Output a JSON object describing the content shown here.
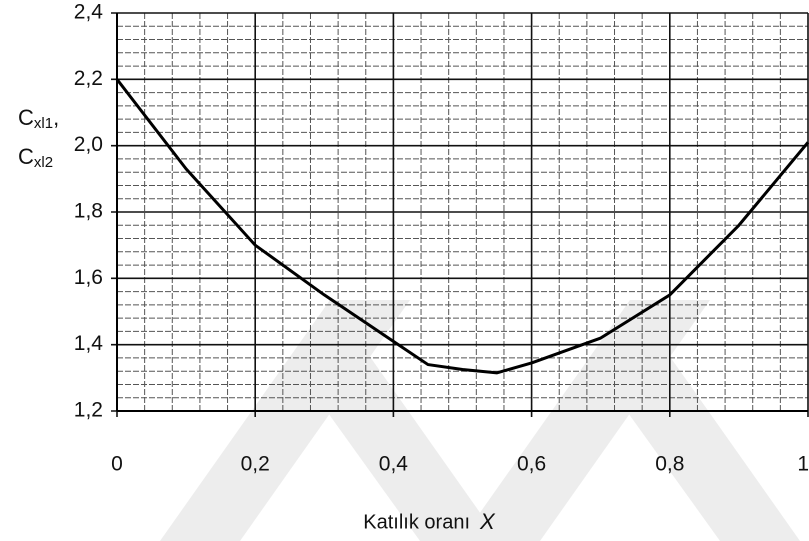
{
  "chart_data": {
    "type": "line",
    "x": [
      0,
      0.1,
      0.2,
      0.3,
      0.4,
      0.45,
      0.5,
      0.55,
      0.6,
      0.7,
      0.8,
      0.9,
      1.0
    ],
    "series": [
      {
        "color": "#000000",
        "values": [
          2.2,
          1.93,
          1.7,
          1.55,
          1.41,
          1.34,
          1.325,
          1.315,
          1.345,
          1.42,
          1.55,
          1.76,
          2.01
        ]
      }
    ],
    "xlim": [
      0,
      1
    ],
    "ylim": [
      1.2,
      2.4
    ],
    "xticks": [
      0,
      {
        "value": 0.2,
        "label": "0,2"
      },
      {
        "value": 0.4,
        "label": "0,4"
      },
      {
        "value": 0.6,
        "label": "0,6"
      },
      {
        "value": 0.8,
        "label": "0,8"
      },
      1
    ],
    "yticks": [
      {
        "value": 1.2,
        "label": "1,2"
      },
      {
        "value": 1.4,
        "label": "1,4"
      },
      {
        "value": 1.6,
        "label": "1,6"
      },
      {
        "value": 1.8,
        "label": "1,8"
      },
      {
        "value": 2.0,
        "label": "2,0"
      },
      {
        "value": 2.2,
        "label": "2,2"
      },
      {
        "value": 2.4,
        "label": "2,4"
      }
    ],
    "grid": true,
    "minor_grid": {
      "x_step": 0.04,
      "y_step": 0.04
    },
    "x_label": "Katılık oranı",
    "x_label_symbol": "X",
    "y_label": [
      {
        "symbol": "C",
        "subscript": "xl1",
        "suffix": ","
      },
      {
        "symbol": "C",
        "subscript": "xl2"
      }
    ]
  }
}
